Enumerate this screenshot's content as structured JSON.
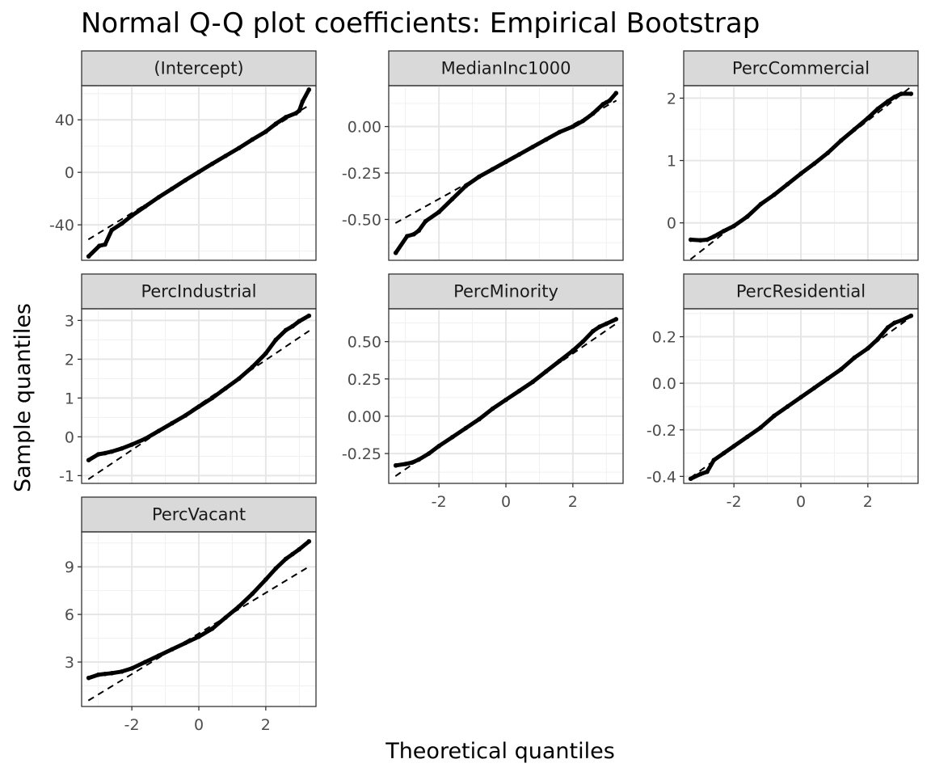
{
  "chart_data": {
    "type": "scatter",
    "title": "Normal Q-Q plot coefficients: Empirical Bootstrap",
    "xlabel": "Theoretical quantiles",
    "ylabel": "Sample quantiles",
    "grid": true,
    "x_ticks": [
      -2,
      0,
      2
    ],
    "xlim": [
      -3.5,
      3.5
    ],
    "panels": [
      {
        "name": "(Intercept)",
        "ylim": [
          -67,
          66
        ],
        "y_ticks": [
          -40,
          0,
          40
        ],
        "y_tick_labels": [
          "-40",
          "0",
          "40"
        ],
        "reference_line": {
          "intercept": 0,
          "slope": 15.5
        },
        "points": [
          [
            -3.29,
            -64
          ],
          [
            -2.97,
            -56
          ],
          [
            -2.8,
            -55
          ],
          [
            -2.6,
            -44
          ],
          [
            -2.3,
            -39
          ],
          [
            -2.0,
            -33
          ],
          [
            -1.6,
            -26
          ],
          [
            -1.2,
            -19
          ],
          [
            -0.8,
            -12.5
          ],
          [
            -0.4,
            -6
          ],
          [
            0.0,
            0.3
          ],
          [
            0.4,
            6.5
          ],
          [
            0.8,
            12.5
          ],
          [
            1.2,
            18.5
          ],
          [
            1.6,
            25
          ],
          [
            2.0,
            31
          ],
          [
            2.3,
            37
          ],
          [
            2.6,
            42
          ],
          [
            2.9,
            45
          ],
          [
            3.0,
            47
          ],
          [
            3.1,
            54
          ],
          [
            3.29,
            63
          ]
        ]
      },
      {
        "name": "MedianInc1000",
        "ylim": [
          -0.72,
          0.22
        ],
        "y_ticks": [
          -0.5,
          -0.25,
          0.0
        ],
        "y_tick_labels": [
          "-0.50",
          "-0.25",
          "0.00"
        ],
        "reference_line": {
          "intercept": -0.19,
          "slope": 0.1
        },
        "points": [
          [
            -3.29,
            -0.68
          ],
          [
            -2.95,
            -0.59
          ],
          [
            -2.75,
            -0.58
          ],
          [
            -2.6,
            -0.56
          ],
          [
            -2.4,
            -0.51
          ],
          [
            -2.0,
            -0.46
          ],
          [
            -1.6,
            -0.39
          ],
          [
            -1.2,
            -0.32
          ],
          [
            -0.8,
            -0.27
          ],
          [
            -0.4,
            -0.23
          ],
          [
            0.0,
            -0.19
          ],
          [
            0.4,
            -0.15
          ],
          [
            0.8,
            -0.11
          ],
          [
            1.2,
            -0.07
          ],
          [
            1.6,
            -0.03
          ],
          [
            2.0,
            0.0
          ],
          [
            2.3,
            0.03
          ],
          [
            2.6,
            0.07
          ],
          [
            2.9,
            0.12
          ],
          [
            3.0,
            0.13
          ],
          [
            3.1,
            0.14
          ],
          [
            3.29,
            0.18
          ]
        ]
      },
      {
        "name": "PercCommercial",
        "ylim": [
          -0.6,
          2.2
        ],
        "y_ticks": [
          0,
          1,
          2
        ],
        "y_tick_labels": [
          "0",
          "1",
          "2"
        ],
        "reference_line": {
          "intercept": 0.8,
          "slope": 0.42
        },
        "points": [
          [
            -3.29,
            -0.27
          ],
          [
            -3.0,
            -0.28
          ],
          [
            -2.8,
            -0.27
          ],
          [
            -2.6,
            -0.22
          ],
          [
            -2.3,
            -0.13
          ],
          [
            -2.0,
            -0.05
          ],
          [
            -1.6,
            0.1
          ],
          [
            -1.2,
            0.3
          ],
          [
            -0.8,
            0.45
          ],
          [
            -0.4,
            0.62
          ],
          [
            0.0,
            0.79
          ],
          [
            0.4,
            0.95
          ],
          [
            0.8,
            1.12
          ],
          [
            1.2,
            1.32
          ],
          [
            1.6,
            1.5
          ],
          [
            2.0,
            1.68
          ],
          [
            2.3,
            1.83
          ],
          [
            2.6,
            1.95
          ],
          [
            2.8,
            2.02
          ],
          [
            3.0,
            2.07
          ],
          [
            3.29,
            2.07
          ]
        ]
      },
      {
        "name": "PercIndustrial",
        "ylim": [
          -1.2,
          3.3
        ],
        "y_ticks": [
          -1,
          0,
          1,
          2,
          3
        ],
        "y_tick_labels": [
          "-1",
          "0",
          "1",
          "2",
          "3"
        ],
        "reference_line": {
          "intercept": 0.82,
          "slope": 0.58
        },
        "points": [
          [
            -3.29,
            -0.6
          ],
          [
            -3.0,
            -0.45
          ],
          [
            -2.8,
            -0.42
          ],
          [
            -2.6,
            -0.38
          ],
          [
            -2.3,
            -0.3
          ],
          [
            -2.0,
            -0.2
          ],
          [
            -1.6,
            -0.05
          ],
          [
            -1.2,
            0.15
          ],
          [
            -0.8,
            0.35
          ],
          [
            -0.4,
            0.55
          ],
          [
            0.0,
            0.78
          ],
          [
            0.4,
            1.0
          ],
          [
            0.8,
            1.25
          ],
          [
            1.2,
            1.5
          ],
          [
            1.6,
            1.8
          ],
          [
            2.0,
            2.15
          ],
          [
            2.3,
            2.5
          ],
          [
            2.6,
            2.75
          ],
          [
            2.8,
            2.85
          ],
          [
            3.0,
            2.98
          ],
          [
            3.29,
            3.12
          ]
        ]
      },
      {
        "name": "PercMinority",
        "ylim": [
          -0.45,
          0.72
        ],
        "y_ticks": [
          -0.25,
          0.0,
          0.25,
          0.5
        ],
        "y_tick_labels": [
          "-0.25",
          "0.00",
          "0.25",
          "0.50"
        ],
        "reference_line": {
          "intercept": 0.11,
          "slope": 0.155
        },
        "points": [
          [
            -3.29,
            -0.33
          ],
          [
            -3.0,
            -0.32
          ],
          [
            -2.8,
            -0.31
          ],
          [
            -2.6,
            -0.29
          ],
          [
            -2.3,
            -0.25
          ],
          [
            -2.0,
            -0.2
          ],
          [
            -1.6,
            -0.14
          ],
          [
            -1.2,
            -0.08
          ],
          [
            -0.8,
            -0.02
          ],
          [
            -0.4,
            0.05
          ],
          [
            0.0,
            0.11
          ],
          [
            0.4,
            0.17
          ],
          [
            0.8,
            0.23
          ],
          [
            1.2,
            0.3
          ],
          [
            1.6,
            0.37
          ],
          [
            2.0,
            0.44
          ],
          [
            2.3,
            0.5
          ],
          [
            2.6,
            0.57
          ],
          [
            2.8,
            0.6
          ],
          [
            3.0,
            0.62
          ],
          [
            3.29,
            0.65
          ]
        ]
      },
      {
        "name": "PercResidential",
        "ylim": [
          -0.43,
          0.32
        ],
        "y_ticks": [
          -0.4,
          -0.2,
          0.0,
          0.2
        ],
        "y_tick_labels": [
          "-0.4",
          "-0.2",
          "0.0",
          "0.2"
        ],
        "reference_line": {
          "intercept": -0.06,
          "slope": 0.105
        },
        "points": [
          [
            -3.29,
            -0.41
          ],
          [
            -3.0,
            -0.39
          ],
          [
            -2.8,
            -0.38
          ],
          [
            -2.6,
            -0.33
          ],
          [
            -2.3,
            -0.3
          ],
          [
            -2.0,
            -0.27
          ],
          [
            -1.6,
            -0.23
          ],
          [
            -1.2,
            -0.19
          ],
          [
            -0.8,
            -0.14
          ],
          [
            -0.4,
            -0.1
          ],
          [
            0.0,
            -0.06
          ],
          [
            0.4,
            -0.02
          ],
          [
            0.8,
            0.02
          ],
          [
            1.2,
            0.06
          ],
          [
            1.6,
            0.11
          ],
          [
            2.0,
            0.15
          ],
          [
            2.3,
            0.19
          ],
          [
            2.6,
            0.24
          ],
          [
            2.8,
            0.26
          ],
          [
            3.0,
            0.27
          ],
          [
            3.29,
            0.29
          ]
        ]
      },
      {
        "name": "PercVacant",
        "ylim": [
          0.2,
          11.2
        ],
        "y_ticks": [
          3,
          6,
          9
        ],
        "y_tick_labels": [
          "3",
          "6",
          "9"
        ],
        "reference_line": {
          "intercept": 4.8,
          "slope": 1.28
        },
        "points": [
          [
            -3.29,
            2.0
          ],
          [
            -3.0,
            2.2
          ],
          [
            -2.8,
            2.25
          ],
          [
            -2.6,
            2.3
          ],
          [
            -2.3,
            2.4
          ],
          [
            -2.0,
            2.6
          ],
          [
            -1.6,
            3.0
          ],
          [
            -1.2,
            3.4
          ],
          [
            -0.8,
            3.8
          ],
          [
            -0.4,
            4.2
          ],
          [
            0.0,
            4.6
          ],
          [
            0.4,
            5.1
          ],
          [
            0.8,
            5.8
          ],
          [
            1.2,
            6.5
          ],
          [
            1.6,
            7.3
          ],
          [
            2.0,
            8.2
          ],
          [
            2.3,
            8.9
          ],
          [
            2.6,
            9.5
          ],
          [
            2.8,
            9.8
          ],
          [
            3.0,
            10.1
          ],
          [
            3.29,
            10.6
          ]
        ]
      }
    ]
  }
}
